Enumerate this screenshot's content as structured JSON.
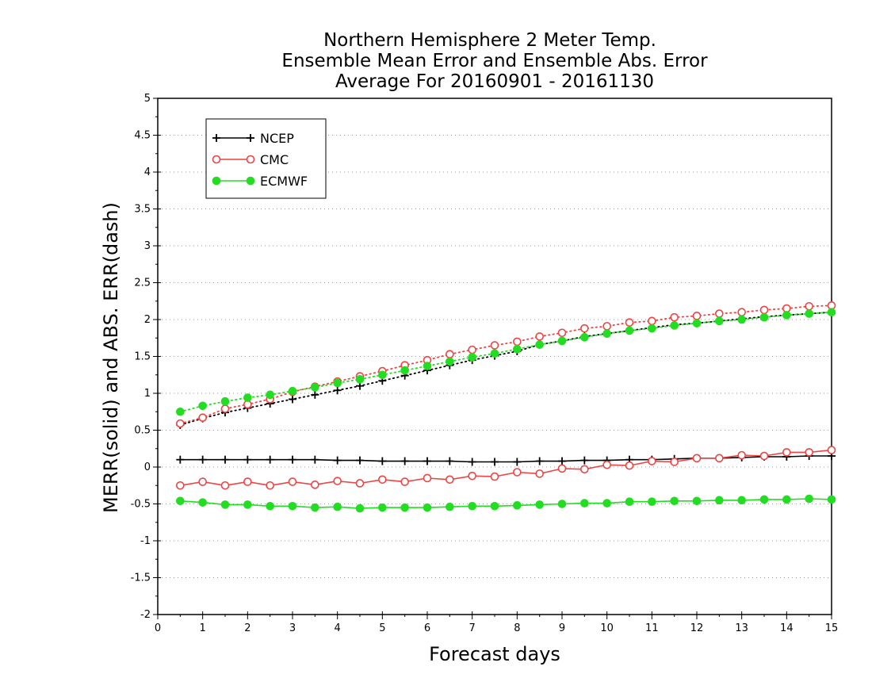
{
  "chart_data": {
    "type": "line",
    "title_lines": [
      "Northern Hemisphere 2 Meter Temp.",
      "Ensemble Mean Error and Ensemble Abs. Error",
      "Average For 20160901 - 20161130"
    ],
    "xlabel": "Forecast days",
    "ylabel": "MERR(solid) and ABS. ERR(dash)",
    "xlim": [
      0,
      15
    ],
    "ylim": [
      -2,
      5
    ],
    "x_ticks": [
      0,
      1,
      2,
      3,
      4,
      5,
      6,
      7,
      8,
      9,
      10,
      11,
      12,
      13,
      14,
      15
    ],
    "x_tick_labels": [
      "0",
      "1",
      "2",
      "3",
      "4",
      "5",
      "6",
      "7",
      "8",
      "9",
      "10",
      "11",
      "12",
      "13",
      "14",
      "15"
    ],
    "y_ticks": [
      -2,
      -1.5,
      -1,
      -0.5,
      0,
      0.5,
      1,
      1.5,
      2,
      2.5,
      3,
      3.5,
      4,
      4.5,
      5
    ],
    "y_tick_labels": [
      "-2",
      "-1.5",
      "-1",
      "-0.5",
      "0",
      "0.5",
      "1",
      "1.5",
      "2",
      "2.5",
      "3",
      "3.5",
      "4",
      "4.5",
      "5"
    ],
    "grid": "horizontal dotted",
    "legend_position": "top-left",
    "x": [
      0.5,
      1,
      1.5,
      2,
      2.5,
      3,
      3.5,
      4,
      4.5,
      5,
      5.5,
      6,
      6.5,
      7,
      7.5,
      8,
      8.5,
      9,
      9.5,
      10,
      10.5,
      11,
      11.5,
      12,
      12.5,
      13,
      13.5,
      14,
      14.5,
      15
    ],
    "series": [
      {
        "name": "NCEP",
        "color": "#000000",
        "marker": "plus",
        "mean_error": [
          0.1,
          0.1,
          0.1,
          0.1,
          0.1,
          0.1,
          0.1,
          0.09,
          0.09,
          0.08,
          0.08,
          0.08,
          0.08,
          0.07,
          0.07,
          0.07,
          0.08,
          0.08,
          0.09,
          0.09,
          0.1,
          0.1,
          0.11,
          0.12,
          0.12,
          0.13,
          0.14,
          0.14,
          0.15,
          0.15
        ],
        "abs_error": [
          0.57,
          0.66,
          0.74,
          0.8,
          0.86,
          0.92,
          0.98,
          1.04,
          1.1,
          1.17,
          1.24,
          1.31,
          1.38,
          1.45,
          1.51,
          1.57,
          1.66,
          1.71,
          1.77,
          1.81,
          1.85,
          1.89,
          1.93,
          1.95,
          1.98,
          2.01,
          2.04,
          2.06,
          2.08,
          2.1
        ]
      },
      {
        "name": "CMC",
        "color": "#ee4444",
        "marker": "open-circle",
        "mean_error": [
          -0.25,
          -0.2,
          -0.25,
          -0.2,
          -0.25,
          -0.2,
          -0.24,
          -0.19,
          -0.22,
          -0.17,
          -0.2,
          -0.15,
          -0.17,
          -0.12,
          -0.13,
          -0.07,
          -0.09,
          -0.02,
          -0.03,
          0.03,
          0.02,
          0.08,
          0.07,
          0.12,
          0.12,
          0.16,
          0.15,
          0.2,
          0.2,
          0.23
        ],
        "abs_error": [
          0.59,
          0.67,
          0.79,
          0.85,
          0.92,
          1.02,
          1.09,
          1.16,
          1.23,
          1.3,
          1.38,
          1.45,
          1.53,
          1.59,
          1.65,
          1.7,
          1.77,
          1.82,
          1.88,
          1.91,
          1.96,
          1.98,
          2.03,
          2.05,
          2.08,
          2.1,
          2.13,
          2.15,
          2.18,
          2.19
        ]
      },
      {
        "name": "ECMWF",
        "color": "#22dd22",
        "marker": "filled-circle",
        "mean_error": [
          -0.46,
          -0.48,
          -0.51,
          -0.51,
          -0.53,
          -0.53,
          -0.55,
          -0.54,
          -0.56,
          -0.55,
          -0.55,
          -0.55,
          -0.54,
          -0.53,
          -0.53,
          -0.52,
          -0.51,
          -0.5,
          -0.49,
          -0.49,
          -0.47,
          -0.47,
          -0.46,
          -0.46,
          -0.45,
          -0.45,
          -0.44,
          -0.44,
          -0.43,
          -0.44
        ],
        "abs_error": [
          0.75,
          0.83,
          0.89,
          0.94,
          0.98,
          1.03,
          1.08,
          1.14,
          1.19,
          1.25,
          1.31,
          1.37,
          1.43,
          1.49,
          1.54,
          1.6,
          1.66,
          1.71,
          1.76,
          1.81,
          1.85,
          1.88,
          1.92,
          1.95,
          1.98,
          2.0,
          2.03,
          2.06,
          2.08,
          2.1
        ]
      }
    ]
  }
}
